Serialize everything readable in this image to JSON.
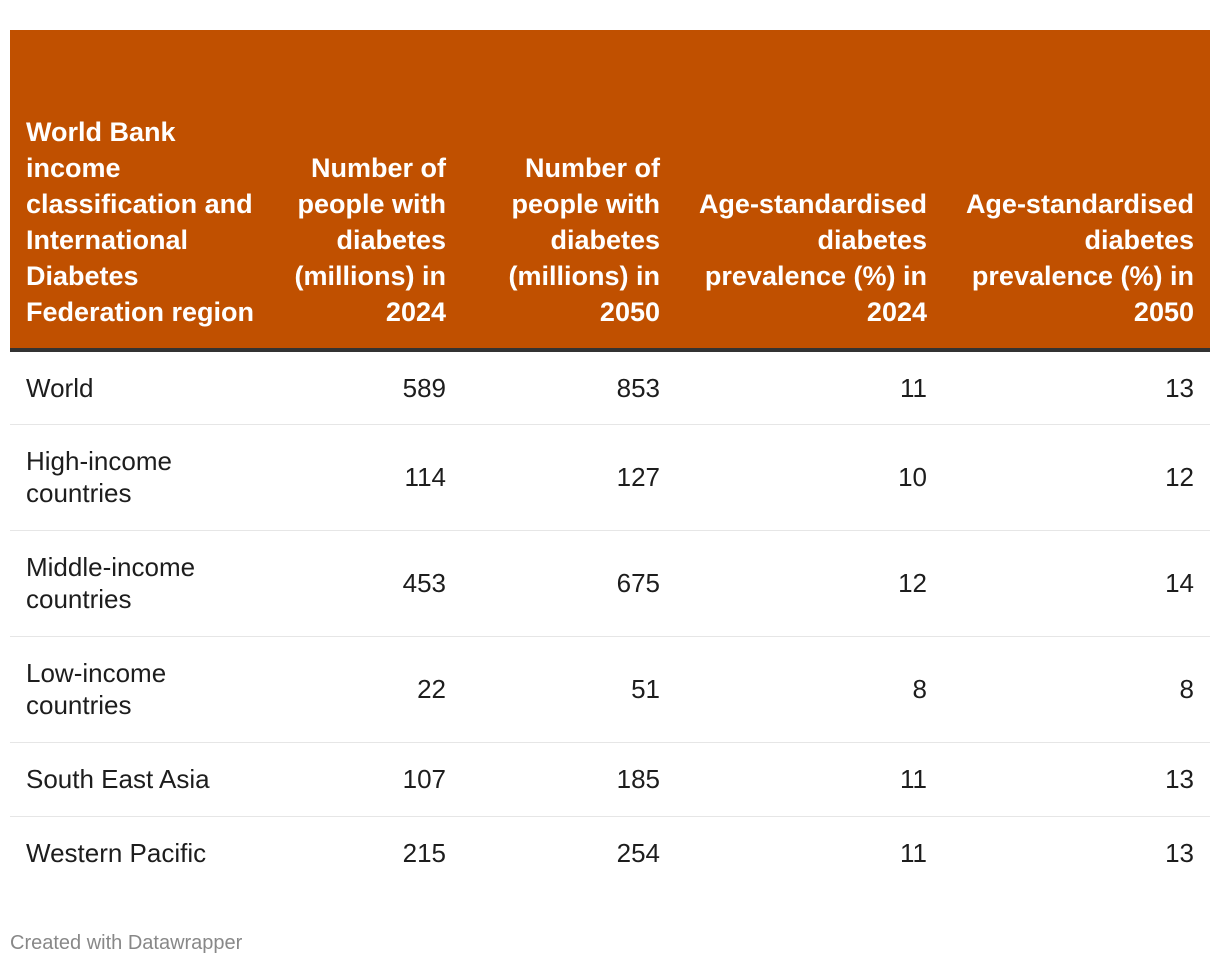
{
  "chart_data": {
    "type": "table",
    "columns": [
      "World Bank income classification and International Diabetes Federation region",
      "Number of people with diabetes (millions) in 2024",
      "Number of people with diabetes (millions) in 2050",
      "Age-standardised diabetes prevalence (%) in 2024",
      "Age-standardised diabetes prevalence (%) in 2050"
    ],
    "rows": [
      [
        "World",
        "589",
        "853",
        "11",
        "13"
      ],
      [
        "High-income countries",
        "114",
        "127",
        "10",
        "12"
      ],
      [
        "Middle-income countries",
        "453",
        "675",
        "12",
        "14"
      ],
      [
        "Low-income countries",
        "22",
        "51",
        "8",
        "8"
      ],
      [
        "South East Asia",
        "107",
        "185",
        "11",
        "13"
      ],
      [
        "Western Pacific",
        "215",
        "254",
        "11",
        "13"
      ]
    ]
  },
  "colors": {
    "header_background": "#c05000",
    "header_text": "#ffffff",
    "header_rule": "#333333"
  },
  "footer": {
    "credit": "Created with Datawrapper"
  }
}
